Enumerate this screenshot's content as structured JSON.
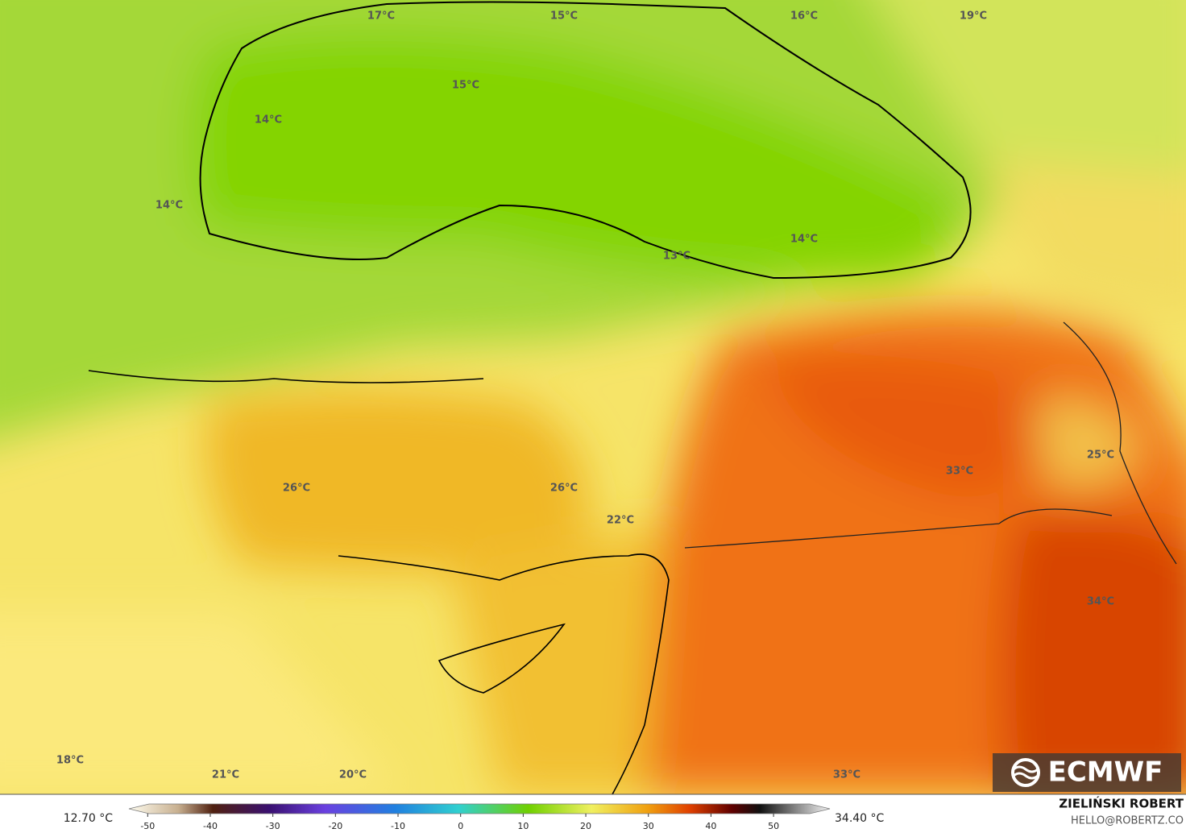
{
  "map": {
    "labels": [
      "17°C",
      "15°C",
      "16°C",
      "19°C",
      "15°C",
      "14°C",
      "14°C",
      "14°C",
      "13°C",
      "26°C",
      "26°C",
      "22°C",
      "33°C",
      "25°C",
      "34°C",
      "18°C",
      "21°C",
      "20°C",
      "33°C"
    ]
  },
  "colorbar": {
    "min_label": "12.70 °C",
    "max_label": "34.40 °C",
    "lim": [
      -53,
      59
    ],
    "ticks": [
      -50,
      -40,
      -30,
      -20,
      -10,
      0,
      10,
      20,
      30,
      40,
      50
    ]
  },
  "branding": {
    "logo": "ECMWF",
    "author": "ZIELIŃSKI ROBERT",
    "contact": "HELLO@ROBERTZ.CO"
  }
}
